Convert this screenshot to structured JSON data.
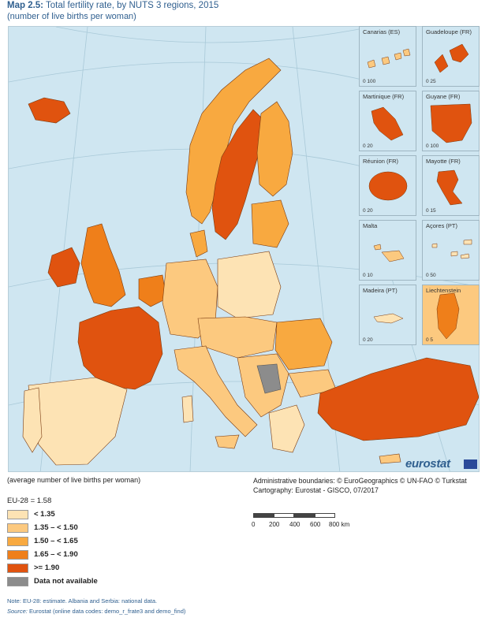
{
  "title": {
    "prefix": "Map 2.5:",
    "text": "Total fertility rate, by NUTS 3 regions, 2015"
  },
  "subtitle": "(number of live births per woman)",
  "insets": [
    {
      "name": "Canarias (ES)",
      "scale": "0   100"
    },
    {
      "name": "Guadeloupe (FR)",
      "scale": "0   25"
    },
    {
      "name": "Martinique (FR)",
      "scale": "0   20"
    },
    {
      "name": "Guyane (FR)",
      "scale": "0   100"
    },
    {
      "name": "Réunion (FR)",
      "scale": "0   20"
    },
    {
      "name": "Mayotte (FR)",
      "scale": "0   15"
    },
    {
      "name": "Malta",
      "scale": "0   10"
    },
    {
      "name": "Açores (PT)",
      "scale": "0   50"
    },
    {
      "name": "Madeira (PT)",
      "scale": "0   20"
    },
    {
      "name": "Liechtenstein",
      "scale": "0   5"
    }
  ],
  "brand": "eurostat",
  "caption_left": "(average number of live births per woman)",
  "credits": {
    "line1": "Administrative boundaries: © EuroGeographics © UN-FAO © Turkstat",
    "line2": "Cartography: Eurostat - GISCO, 07/2017"
  },
  "legend": {
    "eu_line": "EU-28 = 1.58",
    "items": [
      {
        "label": "< 1.35",
        "color": "#fde3b4"
      },
      {
        "label": "1.35 – < 1.50",
        "color": "#fcc97f"
      },
      {
        "label": "1.50 – < 1.65",
        "color": "#f8a940"
      },
      {
        "label": "1.65 – < 1.90",
        "color": "#ef7f1a"
      },
      {
        "label": ">= 1.90",
        "color": "#e0530f"
      },
      {
        "label": "Data not available",
        "color": "#8c8c8c"
      }
    ]
  },
  "scalebar": {
    "ticks": [
      "0",
      "200",
      "400",
      "600",
      "800 km"
    ]
  },
  "note": {
    "line1": "Note: EU-28: estimate. Albania and Serbia: national data.",
    "line2_prefix": "Source:",
    "line2": " Eurostat (online data codes: demo_r_frate3 and demo_find)"
  }
}
